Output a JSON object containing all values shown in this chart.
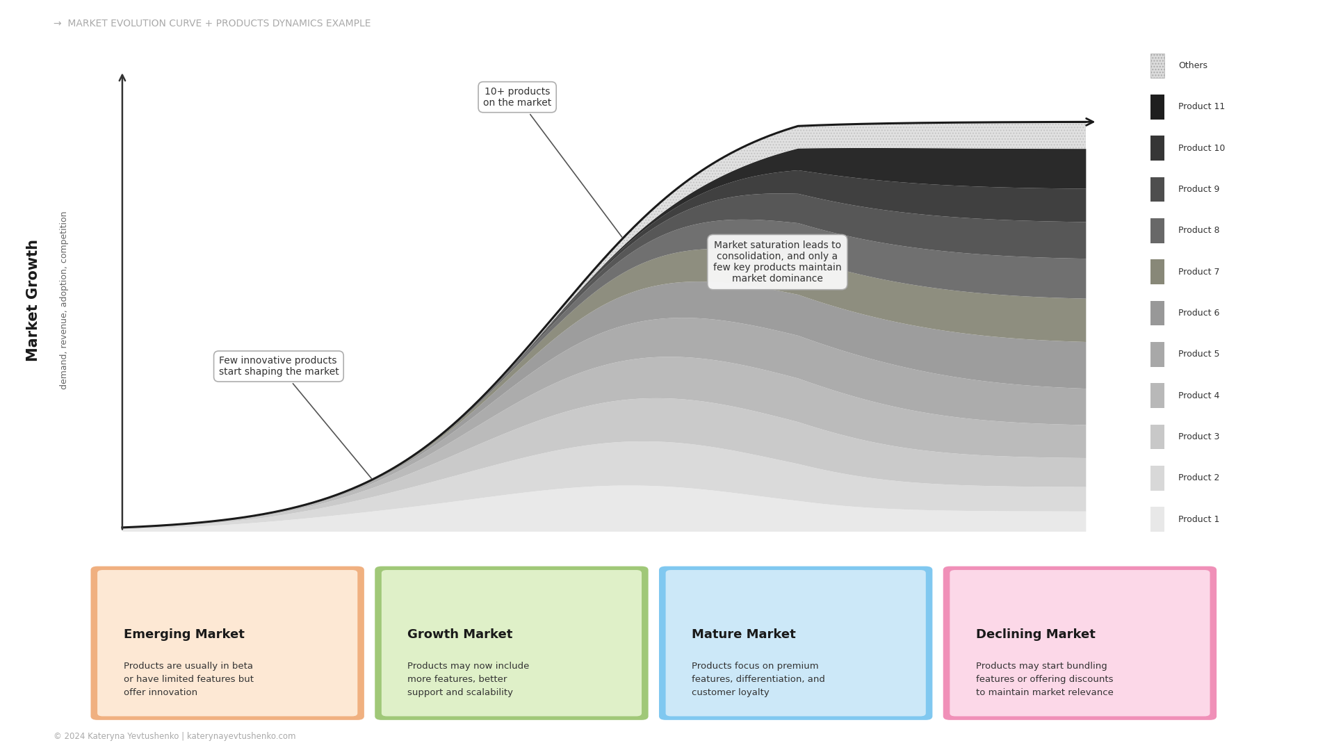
{
  "title": "→  MARKET EVOLUTION CURVE + PRODUCTS DYNAMICS EXAMPLE",
  "ylabel_bold": "Market Growth",
  "ylabel_normal": "demand, revenue, adoption, competition",
  "background_color": "#ffffff",
  "title_color": "#aaaaaa",
  "products": [
    "Product 1",
    "Product 2",
    "Product 3",
    "Product 4",
    "Product 5",
    "Product 6",
    "Product 7",
    "Product 8",
    "Product 9",
    "Product 10",
    "Product 11",
    "Others"
  ],
  "product_colors": [
    "#e8e8e8",
    "#d8d8d8",
    "#c8c8c8",
    "#b8b8b8",
    "#a8a8a8",
    "#989898",
    "#888878",
    "#686868",
    "#4e4e4e",
    "#363636",
    "#1e1e1e",
    "#e0dede"
  ],
  "annotation1_text": "Few innovative products\nstart shaping the market",
  "annotation2_text": "10+ products\non the market",
  "annotation3_text": "Market saturation leads to\nconsolidation, and only a\nfew key products maintain\nmarket dominance",
  "cards": [
    {
      "title": "Emerging Market",
      "text": "Products are usually in beta\nor have limited features but\noffer innovation",
      "bg_color": "#fde8d4",
      "border_color": "#f0b080",
      "title_color": "#1a1a1a"
    },
    {
      "title": "Growth Market",
      "text": "Products may now include\nmore features, better\nsupport and scalability",
      "bg_color": "#dff0c8",
      "border_color": "#a0c878",
      "title_color": "#1a1a1a"
    },
    {
      "title": "Mature Market",
      "text": "Products focus on premium\nfeatures, differentiation, and\ncustomer loyalty",
      "bg_color": "#cce8f8",
      "border_color": "#80c8f0",
      "title_color": "#1a1a1a"
    },
    {
      "title": "Declining Market",
      "text": "Products may start bundling\nfeatures or offering discounts\nto maintain market relevance",
      "bg_color": "#fcd8e8",
      "border_color": "#f090b8",
      "title_color": "#1a1a1a"
    }
  ],
  "footer": "© 2024 Kateryna Yevtushenko | katerynayevtushenko.com"
}
